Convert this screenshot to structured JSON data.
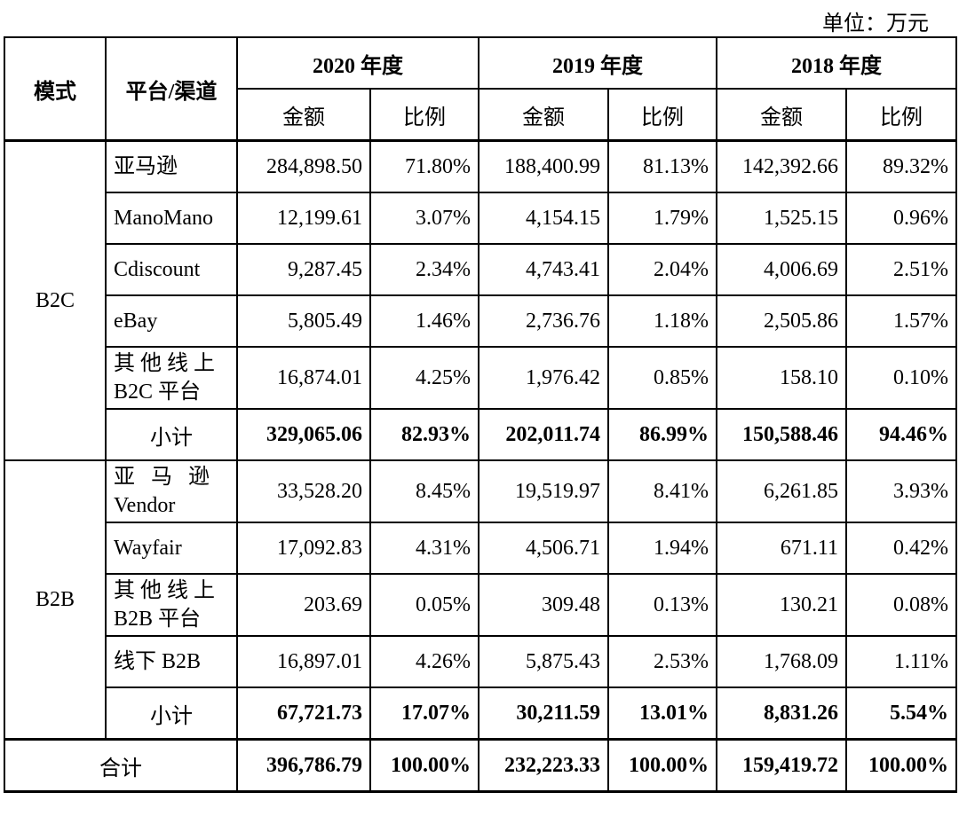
{
  "unit_label": "单位：万元",
  "headers": {
    "mode": "模式",
    "platform": "平台/渠道",
    "years": [
      "2020 年度",
      "2019 年度",
      "2018 年度"
    ],
    "amount": "金额",
    "ratio": "比例"
  },
  "b2c": {
    "mode": "B2C",
    "rows": [
      {
        "platform": "亚马逊",
        "v": [
          "284,898.50",
          "71.80%",
          "188,400.99",
          "81.13%",
          "142,392.66",
          "89.32%"
        ]
      },
      {
        "platform": "ManoMano",
        "v": [
          "12,199.61",
          "3.07%",
          "4,154.15",
          "1.79%",
          "1,525.15",
          "0.96%"
        ]
      },
      {
        "platform": "Cdiscount",
        "v": [
          "9,287.45",
          "2.34%",
          "4,743.41",
          "2.04%",
          "4,006.69",
          "2.51%"
        ]
      },
      {
        "platform": "eBay",
        "v": [
          "5,805.49",
          "1.46%",
          "2,736.76",
          "1.18%",
          "2,505.86",
          "1.57%"
        ]
      },
      {
        "platform_line1": "其他线上",
        "platform_line2": "B2C 平台",
        "v": [
          "16,874.01",
          "4.25%",
          "1,976.42",
          "0.85%",
          "158.10",
          "0.10%"
        ]
      }
    ],
    "subtotal": {
      "label": "小计",
      "v": [
        "329,065.06",
        "82.93%",
        "202,011.74",
        "86.99%",
        "150,588.46",
        "94.46%"
      ]
    }
  },
  "b2b": {
    "mode": "B2B",
    "rows": [
      {
        "platform_line1": "亚 马 逊",
        "platform_line2": "Vendor",
        "v": [
          "33,528.20",
          "8.45%",
          "19,519.97",
          "8.41%",
          "6,261.85",
          "3.93%"
        ]
      },
      {
        "platform": "Wayfair",
        "v": [
          "17,092.83",
          "4.31%",
          "4,506.71",
          "1.94%",
          "671.11",
          "0.42%"
        ]
      },
      {
        "platform_line1": "其他线上",
        "platform_line2": "B2B 平台",
        "v": [
          "203.69",
          "0.05%",
          "309.48",
          "0.13%",
          "130.21",
          "0.08%"
        ]
      },
      {
        "platform": "线下 B2B",
        "v": [
          "16,897.01",
          "4.26%",
          "5,875.43",
          "2.53%",
          "1,768.09",
          "1.11%"
        ]
      }
    ],
    "subtotal": {
      "label": "小计",
      "v": [
        "67,721.73",
        "17.07%",
        "30,211.59",
        "13.01%",
        "8,831.26",
        "5.54%"
      ]
    }
  },
  "total": {
    "label": "合计",
    "v": [
      "396,786.79",
      "100.00%",
      "232,223.33",
      "100.00%",
      "159,419.72",
      "100.00%"
    ]
  }
}
